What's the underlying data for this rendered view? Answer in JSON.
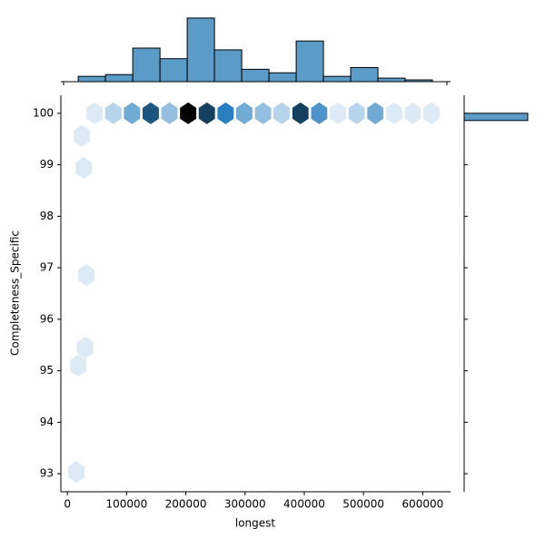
{
  "chart_data": [
    {
      "type": "hexbin",
      "x_label": "longest",
      "y_label": "Completeness_Specific",
      "hexbins": {
        "x": [
          46000,
          77600,
          109200,
          140800,
          172400,
          204000,
          235600,
          267200,
          298800,
          330400,
          362000,
          393600,
          425200,
          456800,
          488400,
          520000,
          551600,
          583200,
          614800,
          24500,
          27600,
          32000,
          30000,
          18400,
          15300
        ],
        "y": [
          100,
          100,
          100,
          100,
          100,
          100,
          100,
          100,
          100,
          100,
          100,
          100,
          100,
          100,
          100,
          100,
          100,
          100,
          100,
          99.56,
          98.94,
          96.86,
          95.45,
          95.1,
          93.03
        ],
        "counts": [
          1,
          2,
          4,
          8,
          3,
          12,
          9,
          6,
          4,
          3,
          2,
          9,
          5,
          1,
          2,
          4,
          1,
          1,
          1,
          1,
          1,
          1,
          1,
          1,
          1
        ]
      },
      "cmap": [
        "#ffffff",
        "#2a7fc0",
        "#000000"
      ],
      "xlim": [
        -11000,
        647000
      ],
      "xticks": [
        0,
        100000,
        200000,
        300000,
        400000,
        500000,
        600000
      ],
      "ylim": [
        92.65,
        100.35
      ],
      "yticks": [
        93,
        94,
        95,
        96,
        97,
        98,
        99,
        100
      ]
    },
    {
      "type": "histogram",
      "orientation": "vertical",
      "color": "#5b9bc8",
      "bins": [
        18400,
        64400,
        110400,
        156400,
        202400,
        248400,
        294400,
        340400,
        386400,
        432400,
        478400,
        524400,
        570400,
        616400
      ],
      "counts": [
        3,
        4,
        19,
        13,
        36,
        18,
        7,
        5,
        23,
        3,
        8,
        2,
        1
      ],
      "ylim": [
        0,
        38
      ]
    },
    {
      "type": "histogram",
      "orientation": "horizontal",
      "color": "#5b9bc8",
      "bins": [
        99.86,
        100
      ],
      "counts": [
        140
      ],
      "xlim": [
        0,
        160
      ]
    }
  ]
}
